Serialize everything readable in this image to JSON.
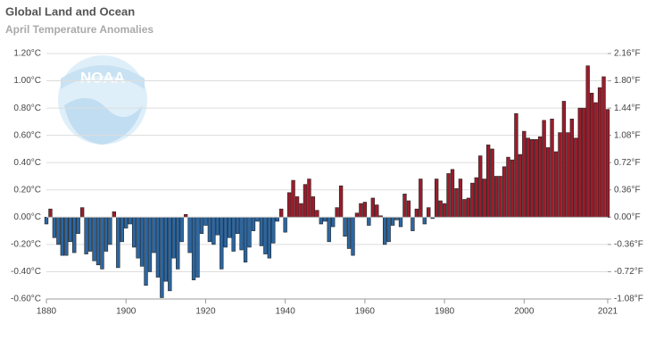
{
  "logo": "NOAA",
  "chart_data": {
    "type": "bar",
    "title": "Global Land and Ocean",
    "subtitle": "April Temperature Anomalies",
    "positive_color": "#9b1c2b",
    "negative_color": "#2b67a3",
    "x": [
      1880,
      1881,
      1882,
      1883,
      1884,
      1885,
      1886,
      1887,
      1888,
      1889,
      1890,
      1891,
      1892,
      1893,
      1894,
      1895,
      1896,
      1897,
      1898,
      1899,
      1900,
      1901,
      1902,
      1903,
      1904,
      1905,
      1906,
      1907,
      1908,
      1909,
      1910,
      1911,
      1912,
      1913,
      1914,
      1915,
      1916,
      1917,
      1918,
      1919,
      1920,
      1921,
      1922,
      1923,
      1924,
      1925,
      1926,
      1927,
      1928,
      1929,
      1930,
      1931,
      1932,
      1933,
      1934,
      1935,
      1936,
      1937,
      1938,
      1939,
      1940,
      1941,
      1942,
      1943,
      1944,
      1945,
      1946,
      1947,
      1948,
      1949,
      1950,
      1951,
      1952,
      1953,
      1954,
      1955,
      1956,
      1957,
      1958,
      1959,
      1960,
      1961,
      1962,
      1963,
      1964,
      1965,
      1966,
      1967,
      1968,
      1969,
      1970,
      1971,
      1972,
      1973,
      1974,
      1975,
      1976,
      1977,
      1978,
      1979,
      1980,
      1981,
      1982,
      1983,
      1984,
      1985,
      1986,
      1987,
      1988,
      1989,
      1990,
      1991,
      1992,
      1993,
      1994,
      1995,
      1996,
      1997,
      1998,
      1999,
      2000,
      2001,
      2002,
      2003,
      2004,
      2005,
      2006,
      2007,
      2008,
      2009,
      2010,
      2011,
      2012,
      2013,
      2014,
      2015,
      2016,
      2017,
      2018,
      2019,
      2020,
      2021
    ],
    "values": [
      -0.05,
      0.06,
      -0.15,
      -0.2,
      -0.28,
      -0.28,
      -0.18,
      -0.26,
      -0.12,
      0.07,
      -0.27,
      -0.25,
      -0.32,
      -0.35,
      -0.38,
      -0.25,
      -0.2,
      0.04,
      -0.37,
      -0.18,
      -0.08,
      -0.05,
      -0.22,
      -0.3,
      -0.36,
      -0.5,
      -0.4,
      -0.26,
      -0.44,
      -0.59,
      -0.47,
      -0.54,
      -0.3,
      -0.38,
      -0.18,
      0.02,
      -0.26,
      -0.46,
      -0.44,
      -0.12,
      -0.06,
      -0.18,
      -0.2,
      -0.13,
      -0.38,
      -0.22,
      -0.15,
      -0.25,
      -0.12,
      -0.24,
      -0.33,
      -0.22,
      -0.1,
      -0.03,
      -0.21,
      -0.27,
      -0.3,
      -0.19,
      -0.03,
      0.06,
      -0.11,
      0.18,
      0.27,
      0.15,
      0.1,
      0.24,
      0.28,
      0.15,
      0.05,
      -0.05,
      -0.03,
      -0.18,
      -0.07,
      0.07,
      0.23,
      -0.14,
      -0.23,
      -0.28,
      0.03,
      0.1,
      0.11,
      -0.06,
      0.14,
      0.09,
      0.01,
      -0.2,
      -0.18,
      -0.06,
      -0.02,
      -0.07,
      0.17,
      0.12,
      -0.1,
      0.06,
      0.28,
      -0.05,
      0.07,
      -0.01,
      0.28,
      0.12,
      0.1,
      0.32,
      0.35,
      0.21,
      0.28,
      0.13,
      0.14,
      0.25,
      0.29,
      0.45,
      0.28,
      0.53,
      0.5,
      0.3,
      0.3,
      0.37,
      0.44,
      0.42,
      0.76,
      0.46,
      0.63,
      0.58,
      0.57,
      0.57,
      0.59,
      0.71,
      0.51,
      0.72,
      0.48,
      0.62,
      0.85,
      0.62,
      0.72,
      0.58,
      0.8,
      0.8,
      1.11,
      0.91,
      0.84,
      0.95,
      1.03,
      0.79
    ],
    "xlim": [
      1880,
      2021
    ],
    "xticks": [
      1880,
      1900,
      1920,
      1940,
      1960,
      1980,
      2000,
      2021
    ],
    "ylim": [
      -0.6,
      1.2
    ],
    "yticks": [
      {
        "value": -0.6,
        "label": "-0.60°C"
      },
      {
        "value": -0.4,
        "label": "-0.40°C"
      },
      {
        "value": -0.2,
        "label": "-0.20°C"
      },
      {
        "value": 0,
        "label": "0.00°C"
      },
      {
        "value": 0.2,
        "label": "0.20°C"
      },
      {
        "value": 0.4,
        "label": "0.40°C"
      },
      {
        "value": 0.6,
        "label": "0.60°C"
      },
      {
        "value": 0.8,
        "label": "0.80°C"
      },
      {
        "value": 1.0,
        "label": "1.00°C"
      },
      {
        "value": 1.2,
        "label": "1.20°C"
      }
    ],
    "y2lim": [
      -1.08,
      2.16
    ],
    "y2ticks": [
      {
        "value": -1.08,
        "label": "-1.08°F"
      },
      {
        "value": -0.72,
        "label": "-0.72°F"
      },
      {
        "value": -0.36,
        "label": "-0.36°F"
      },
      {
        "value": 0,
        "label": "0.00°F"
      },
      {
        "value": 0.36,
        "label": "0.36°F"
      },
      {
        "value": 0.72,
        "label": "0.72°F"
      },
      {
        "value": 1.08,
        "label": "1.08°F"
      },
      {
        "value": 1.44,
        "label": "1.44°F"
      },
      {
        "value": 1.8,
        "label": "1.80°F"
      },
      {
        "value": 2.16,
        "label": "2.16°F"
      }
    ],
    "grid": true
  }
}
